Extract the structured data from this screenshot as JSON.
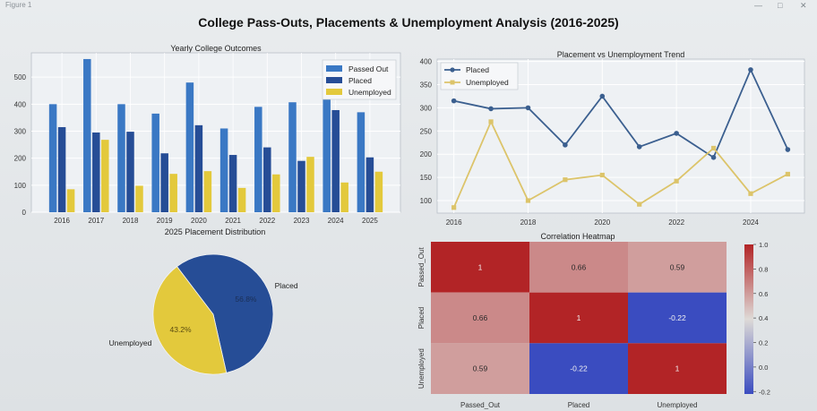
{
  "window": {
    "title": "Figure 1",
    "controls": [
      "—",
      "□",
      "✕"
    ]
  },
  "suptitle": "College Pass-Outs, Placements & Unemployment Analysis (2016-2025)",
  "colors": {
    "passed_out": "#3a78c4",
    "placed": "#264d96",
    "unemployed": "#e3c93c",
    "line_placed": "#3b5f8f",
    "line_unemployed": "#dcc46a"
  },
  "chart_data": [
    {
      "type": "bar",
      "title": "Yearly College Outcomes",
      "categories": [
        "2016",
        "2017",
        "2018",
        "2019",
        "2020",
        "2021",
        "2022",
        "2023",
        "2024",
        "2025"
      ],
      "series": [
        {
          "name": "Passed Out",
          "values": [
            400,
            567,
            400,
            365,
            480,
            310,
            390,
            407,
            435,
            370
          ]
        },
        {
          "name": "Placed",
          "values": [
            315,
            295,
            298,
            218,
            322,
            212,
            240,
            190,
            378,
            203
          ]
        },
        {
          "name": "Unemployed",
          "values": [
            85,
            268,
            98,
            142,
            152,
            90,
            140,
            205,
            110,
            150
          ]
        }
      ],
      "yticks": [
        0,
        100,
        200,
        300,
        400,
        500
      ],
      "ylim": [
        0,
        590
      ],
      "legend": "top-right",
      "grid": true
    },
    {
      "type": "line",
      "title": "Placement vs Unemployment Trend",
      "x": [
        2016,
        2017,
        2018,
        2019,
        2020,
        2021,
        2022,
        2023,
        2024,
        2025
      ],
      "series": [
        {
          "name": "Placed",
          "values": [
            315,
            298,
            300,
            220,
            325,
            216,
            245,
            193,
            382,
            210
          ]
        },
        {
          "name": "Unemployed",
          "values": [
            85,
            270,
            100,
            145,
            155,
            92,
            142,
            213,
            115,
            157
          ]
        }
      ],
      "xticks": [
        2016,
        2018,
        2020,
        2022,
        2024
      ],
      "yticks": [
        100,
        150,
        200,
        250,
        300,
        350,
        400
      ],
      "xlim": [
        2015.55,
        2025.45
      ],
      "ylim": [
        73,
        405
      ],
      "legend": "top-left",
      "grid": true
    },
    {
      "type": "pie",
      "title": "2025 Placement Distribution",
      "labels": [
        "Placed",
        "Unemployed"
      ],
      "values": [
        56.8,
        43.2
      ],
      "pct_labels": [
        "56.8%",
        "43.2%"
      ]
    },
    {
      "type": "heatmap",
      "title": "Correlation Heatmap",
      "rows": [
        "Passed_Out",
        "Placed",
        "Unemployed"
      ],
      "cols": [
        "Passed_Out",
        "Placed",
        "Unemployed"
      ],
      "values": [
        [
          1,
          0.66,
          0.59
        ],
        [
          0.66,
          1,
          -0.22
        ],
        [
          0.59,
          -0.22,
          1
        ]
      ],
      "cell_labels": [
        [
          "1",
          "0.66",
          "0.59"
        ],
        [
          "0.66",
          "1",
          "-0.22"
        ],
        [
          "0.59",
          "-0.22",
          "1"
        ]
      ],
      "colorbar_ticks": [
        "1.0",
        "0.8",
        "0.6",
        "0.4",
        "0.2",
        "0.0",
        "-0.2"
      ],
      "colorbar_values": [
        1.0,
        0.8,
        0.6,
        0.4,
        0.2,
        0.0,
        -0.2
      ],
      "vmin": -0.22,
      "vmax": 1.0
    }
  ]
}
